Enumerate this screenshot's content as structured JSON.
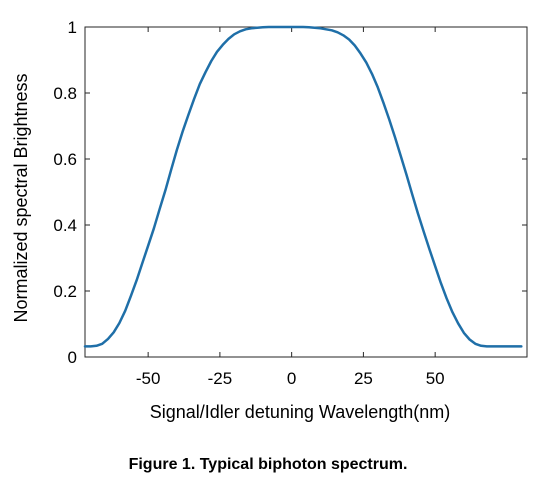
{
  "caption": "Figure 1. Typical biphoton spectrum.",
  "chart_data": {
    "type": "line",
    "title": "",
    "xlabel": "Signal/Idler detuning Wavelength(nm)",
    "ylabel": "Normalized spectral Brightness",
    "xlim": [
      -72,
      82
    ],
    "ylim": [
      0,
      1
    ],
    "x_ticks": [
      -50,
      -25,
      0,
      25,
      50
    ],
    "x_tick_labels": [
      "-50",
      "-25",
      "0",
      "25",
      "50"
    ],
    "y_ticks": [
      0,
      0.2,
      0.4,
      0.6,
      0.8,
      1
    ],
    "y_tick_labels": [
      "0",
      "0.2",
      "0.4",
      "0.6",
      "0.8",
      "1"
    ],
    "grid": false,
    "line_color": "#1f6fa8",
    "series": [
      {
        "x": [
          -72,
          -70,
          -68,
          -66,
          -64,
          -62,
          -60,
          -58,
          -56,
          -54,
          -52,
          -50,
          -48,
          -46,
          -44,
          -42,
          -40,
          -38,
          -36,
          -34,
          -32,
          -30,
          -28,
          -26,
          -24,
          -22,
          -20,
          -18,
          -16,
          -14,
          -12,
          -10,
          -8,
          -6,
          -4,
          -2,
          0,
          2,
          4,
          6,
          8,
          10,
          12,
          14,
          16,
          18,
          20,
          22,
          24,
          26,
          28,
          30,
          32,
          34,
          36,
          38,
          40,
          42,
          44,
          46,
          48,
          50,
          52,
          54,
          56,
          58,
          60,
          62,
          64,
          66,
          68,
          70,
          72,
          74,
          76,
          78,
          80
        ],
        "y": [
          0.032,
          0.032,
          0.034,
          0.04,
          0.055,
          0.075,
          0.103,
          0.14,
          0.185,
          0.233,
          0.285,
          0.337,
          0.39,
          0.448,
          0.505,
          0.567,
          0.627,
          0.683,
          0.733,
          0.782,
          0.827,
          0.863,
          0.897,
          0.925,
          0.946,
          0.964,
          0.978,
          0.987,
          0.993,
          0.996,
          0.998,
          0.999,
          1.0,
          1.0,
          1.0,
          1.0,
          1.0,
          1.0,
          1.0,
          0.999,
          0.998,
          0.996,
          0.993,
          0.99,
          0.984,
          0.975,
          0.962,
          0.944,
          0.92,
          0.892,
          0.858,
          0.817,
          0.77,
          0.72,
          0.666,
          0.61,
          0.552,
          0.493,
          0.435,
          0.38,
          0.327,
          0.275,
          0.224,
          0.178,
          0.136,
          0.102,
          0.073,
          0.053,
          0.04,
          0.034,
          0.032,
          0.032,
          0.032,
          0.032,
          0.032,
          0.032,
          0.032
        ]
      }
    ]
  }
}
